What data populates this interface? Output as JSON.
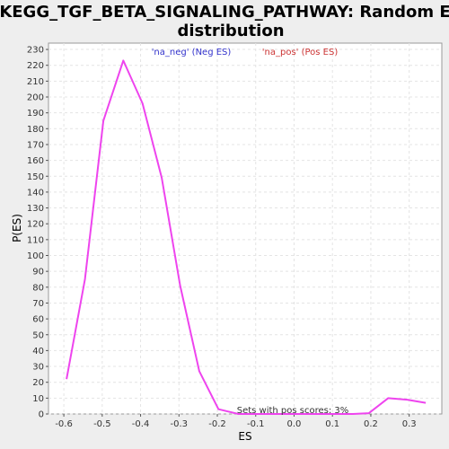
{
  "chart_data": {
    "type": "line",
    "title_lines": [
      "KEGG_TGF_BETA_SIGNALING_PATHWAY: Random ES",
      "distribution"
    ],
    "xlabel": "ES",
    "ylabel": "P(ES)",
    "xlim": [
      -0.64,
      0.385
    ],
    "ylim": [
      0,
      234
    ],
    "x_ticks": [
      -0.6,
      -0.5,
      -0.4,
      -0.3,
      -0.2,
      -0.1,
      0.0,
      0.1,
      0.2,
      0.3
    ],
    "x_tick_labels": [
      "-0.6",
      "-0.5",
      "-0.4",
      "-0.3",
      "-0.2",
      "-0.1",
      "0.0",
      "0.1",
      "0.2",
      "0.3"
    ],
    "y_ticks": [
      0,
      10,
      20,
      30,
      40,
      50,
      60,
      70,
      80,
      90,
      100,
      110,
      120,
      130,
      140,
      150,
      160,
      170,
      180,
      190,
      200,
      210,
      220,
      230
    ],
    "y_tick_labels": [
      "0",
      "10",
      "20",
      "30",
      "40",
      "50",
      "60",
      "70",
      "80",
      "90",
      "100",
      "110",
      "120",
      "130",
      "140",
      "150",
      "160",
      "170",
      "180",
      "190",
      "200",
      "210",
      "220",
      "230"
    ],
    "grid": true,
    "legend": [
      {
        "label": "'na_neg' (Neg ES)",
        "color": "#3333cc"
      },
      {
        "label": "'na_pos' (Pos ES)",
        "color": "#cc3333"
      }
    ],
    "annotation": "Sets with pos scores: 3%",
    "series": [
      {
        "color": "#ee44ee",
        "x": [
          -0.593,
          -0.545,
          -0.497,
          -0.445,
          -0.395,
          -0.345,
          -0.297,
          -0.247,
          -0.197,
          -0.145,
          -0.097,
          -0.047,
          0.003,
          0.053,
          0.103,
          0.153,
          0.195,
          0.245,
          0.295,
          0.343
        ],
        "y": [
          22,
          85,
          185,
          223,
          196,
          149,
          81,
          27,
          3,
          0,
          0,
          0,
          0,
          0,
          0,
          0,
          0.5,
          10,
          9,
          7
        ]
      }
    ]
  }
}
